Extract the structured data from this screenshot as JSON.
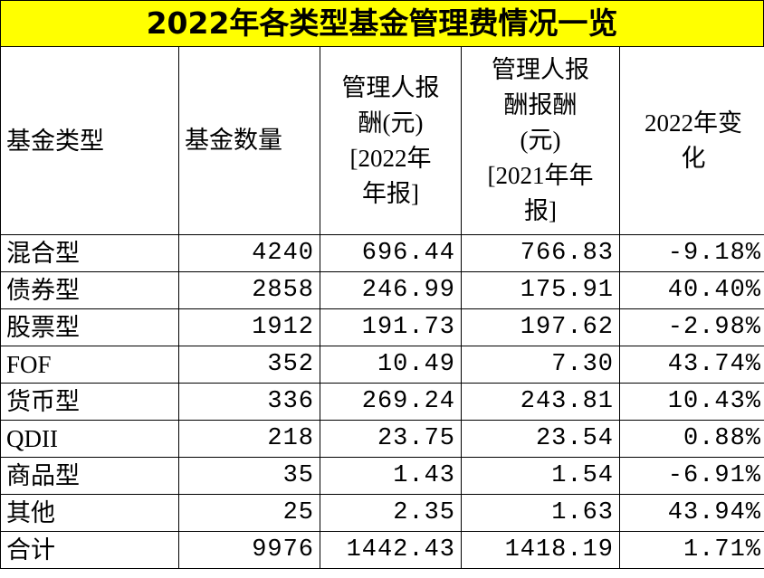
{
  "title": "2022年各类型基金管理费情况一览",
  "header": [
    [
      "基金类型"
    ],
    [
      "基金数量"
    ],
    [
      "管理人报",
      "酬(元)",
      "[2022年",
      "年报]"
    ],
    [
      "管理人报",
      "酬报酬",
      "(元)",
      "[2021年年",
      "报]"
    ],
    [
      "2022年变",
      "化"
    ]
  ],
  "rows": [
    [
      "混合型",
      "4240",
      "696.44",
      "766.83",
      "-9.18%"
    ],
    [
      "债券型",
      "2858",
      "246.99",
      "175.91",
      "40.40%"
    ],
    [
      "股票型",
      "1912",
      "191.73",
      "197.62",
      "-2.98%"
    ],
    [
      "FOF",
      "352",
      "10.49",
      "7.30",
      "43.74%"
    ],
    [
      "货币型",
      "336",
      "269.24",
      "243.81",
      "10.43%"
    ],
    [
      "QDII",
      "218",
      "23.75",
      "23.54",
      "0.88%"
    ],
    [
      "商品型",
      "35",
      "1.43",
      "1.54",
      "-6.91%"
    ],
    [
      "其他",
      "25",
      "2.35",
      "1.63",
      "43.94%"
    ],
    [
      "合计",
      "9976",
      "1442.43",
      "1418.19",
      "1.71%"
    ]
  ],
  "colors": {
    "title_bg": "#ffff00",
    "border": "#000000"
  }
}
